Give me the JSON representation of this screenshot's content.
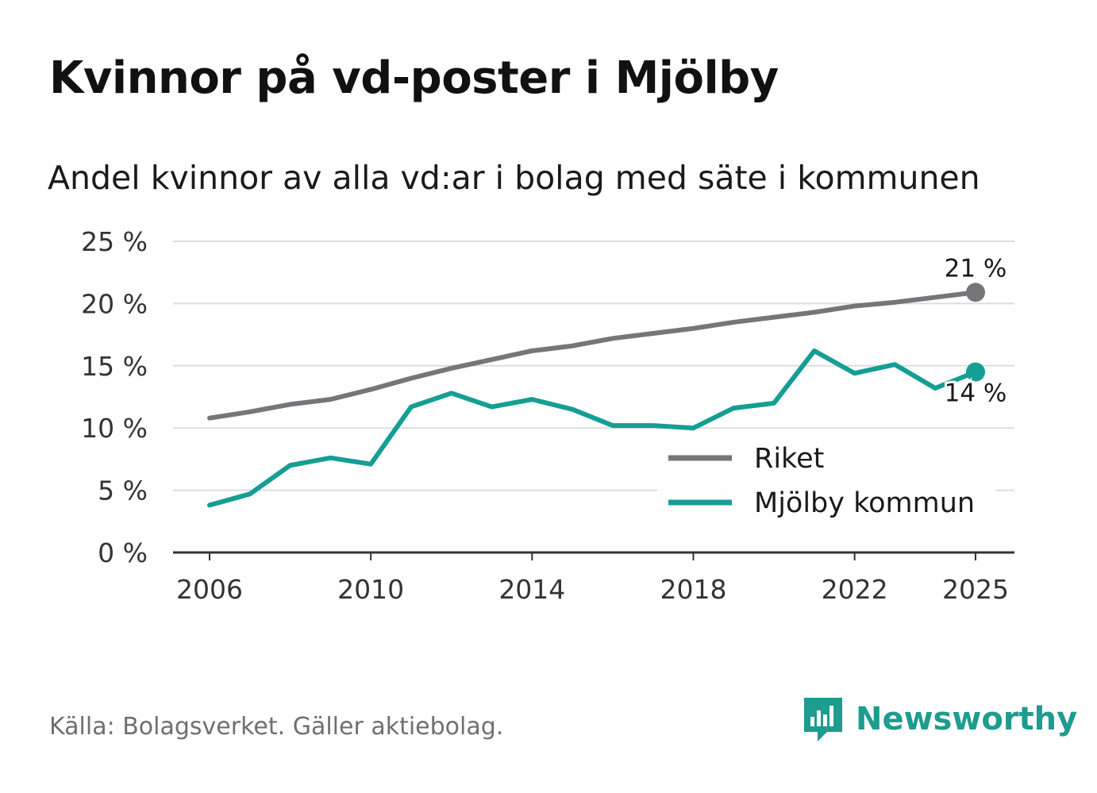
{
  "title": "Kvinnor på vd-poster i Mjölby",
  "subtitle": "Andel kvinnor av alla vd:ar i bolag med säte i kommunen",
  "source": "Källa: Bolagsverket. Gäller aktiebolag.",
  "brand": {
    "name": "Newsworthy",
    "logo_icon": "bar-chart-speech-bubble-icon"
  },
  "colors": {
    "riket": "#76757a",
    "mjolby": "#159e94",
    "grid": "#dddddd",
    "axis": "#333333",
    "text": "#333333"
  },
  "chart_data": {
    "type": "line",
    "x": [
      2006,
      2007,
      2008,
      2009,
      2010,
      2011,
      2012,
      2013,
      2014,
      2015,
      2016,
      2017,
      2018,
      2019,
      2020,
      2021,
      2022,
      2023,
      2024,
      2025
    ],
    "series": [
      {
        "name": "Riket",
        "values": [
          10.8,
          11.3,
          11.9,
          12.3,
          13.1,
          14.0,
          14.8,
          15.5,
          16.2,
          16.6,
          17.2,
          17.6,
          18.0,
          18.5,
          18.9,
          19.3,
          19.8,
          20.1,
          20.5,
          20.9
        ],
        "end_label": "21 %"
      },
      {
        "name": "Mjölby kommun",
        "values": [
          3.8,
          4.7,
          7.0,
          7.6,
          7.1,
          11.7,
          12.8,
          11.7,
          12.3,
          11.5,
          10.2,
          10.2,
          10.0,
          11.6,
          12.0,
          16.2,
          14.4,
          15.1,
          13.2,
          14.5
        ],
        "end_label": "14 %"
      }
    ],
    "x_ticks": [
      2006,
      2010,
      2014,
      2018,
      2022,
      2025
    ],
    "y_ticks": [
      0,
      5,
      10,
      15,
      20,
      25
    ],
    "y_tick_labels": [
      "0 %",
      "5 %",
      "10 %",
      "15 %",
      "20 %",
      "25 %"
    ],
    "ylim": [
      0,
      25
    ],
    "xlim": [
      2006,
      2025
    ],
    "grid": true,
    "legend": [
      "Riket",
      "Mjölby kommun"
    ],
    "legend_position": "bottom-right",
    "title": "Kvinnor på vd-poster i Mjölby",
    "xlabel": "",
    "ylabel": ""
  }
}
